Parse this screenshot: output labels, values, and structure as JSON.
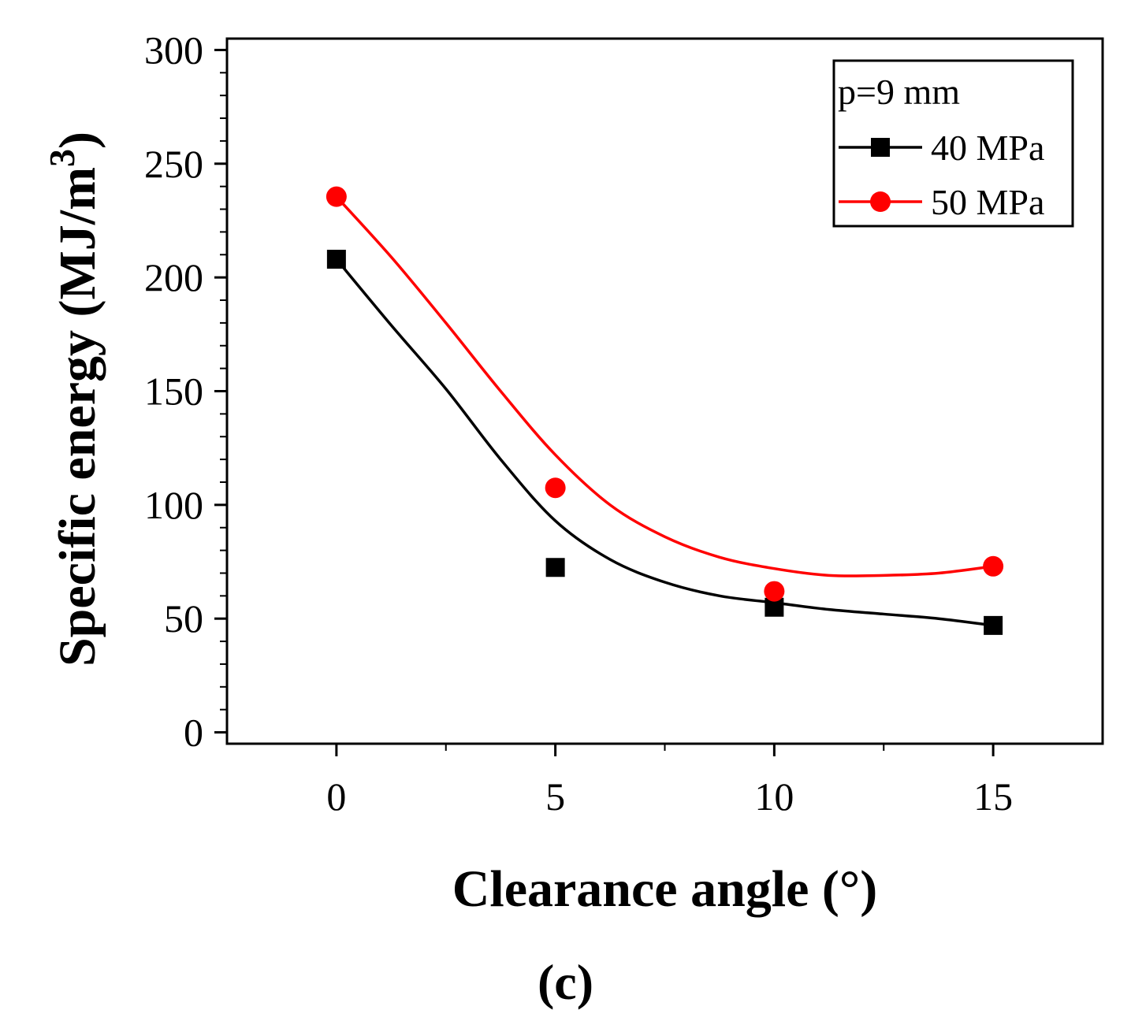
{
  "panel_label": "(c)",
  "chart_data": {
    "type": "scatter",
    "xlabel": "Clearance angle (°)",
    "ylabel": "Specific energy (MJ/m",
    "ylabel_superscript": "3",
    "ylabel_close": ")",
    "xlim": [
      -2.5,
      17.5
    ],
    "ylim": [
      -5,
      305
    ],
    "x_ticks": [
      0,
      5,
      10,
      15
    ],
    "x_tick_labels": [
      "0",
      "5",
      "10",
      "15"
    ],
    "y_ticks": [
      0,
      50,
      100,
      150,
      200,
      250,
      300
    ],
    "y_tick_labels": [
      "0",
      "50",
      "100",
      "150",
      "200",
      "250",
      "300"
    ],
    "y_minor_step": 10,
    "grid": false,
    "legend": {
      "title": "p=9 mm",
      "placement": "top-right"
    },
    "series": [
      {
        "name": "40 MPa",
        "color": "#000000",
        "marker": "square",
        "x": [
          0,
          5,
          10,
          15
        ],
        "y": [
          208,
          72.5,
          55,
          47
        ],
        "fit": {
          "x": [
            0,
            1.25,
            2.5,
            3.75,
            5,
            6.25,
            7.5,
            8.75,
            10,
            11.25,
            12.5,
            13.75,
            15
          ],
          "y": [
            208,
            179,
            151,
            120,
            93,
            76,
            66,
            60,
            57,
            54,
            52,
            50,
            47
          ]
        }
      },
      {
        "name": "50 MPa",
        "color": "#ff0000",
        "marker": "circle",
        "x": [
          0,
          5,
          10,
          15
        ],
        "y": [
          235.5,
          107.5,
          62,
          73
        ],
        "fit": {
          "x": [
            0,
            1.25,
            2.5,
            3.75,
            5,
            6.25,
            7.5,
            8.75,
            10,
            11.25,
            12.5,
            13.75,
            15
          ],
          "y": [
            235.5,
            209,
            180,
            150,
            122,
            100,
            86,
            77,
            72,
            69,
            69,
            70,
            73
          ]
        }
      }
    ]
  }
}
